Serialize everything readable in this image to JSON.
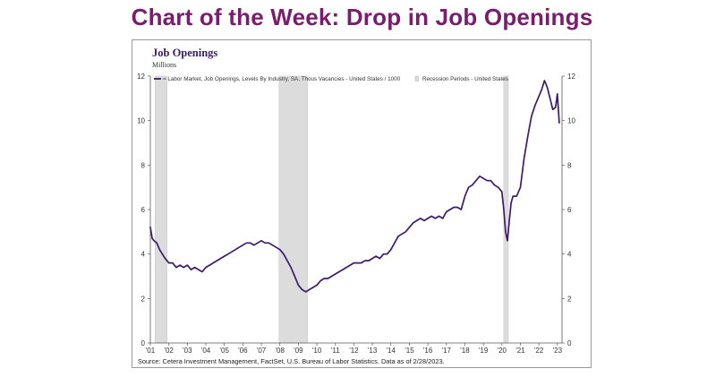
{
  "headline": "Chart of the Week: Drop in Job Openings",
  "colors": {
    "headline": "#7b1c6e",
    "series": "#3d1a6e",
    "recession": "#dcdcdc",
    "axis": "#555555"
  },
  "chart_data": {
    "type": "line",
    "title": "Job Openings",
    "unit_label": "Millions",
    "legend": [
      {
        "name": "= Labor Market, Job Openings, Levels By Industry, SA, Thous Vacancies - United States / 1000",
        "marker": "line"
      },
      {
        "name": "Recession Periods - United States",
        "marker": "box"
      }
    ],
    "x_tick_labels": [
      "'01",
      "'02",
      "'03",
      "'04",
      "'05",
      "'06",
      "'07",
      "'08",
      "'09",
      "'10",
      "'11",
      "'12",
      "'13",
      "'14",
      "'15",
      "'16",
      "'17",
      "'18",
      "'19",
      "'20",
      "'21",
      "'22",
      "'23"
    ],
    "x_range": [
      2001.0,
      2023.25
    ],
    "ylim": [
      0,
      12
    ],
    "y_ticks": [
      0,
      2,
      4,
      6,
      8,
      10,
      12
    ],
    "recessions": [
      [
        2001.25,
        2001.9
      ],
      [
        2007.95,
        2009.5
      ],
      [
        2020.1,
        2020.35
      ]
    ],
    "series": [
      {
        "name": "Job Openings (Millions)",
        "x": [
          2001.0,
          2001.1,
          2001.2,
          2001.35,
          2001.5,
          2001.65,
          2001.8,
          2002.0,
          2002.2,
          2002.4,
          2002.6,
          2002.8,
          2003.0,
          2003.2,
          2003.4,
          2003.6,
          2003.8,
          2004.0,
          2004.2,
          2004.4,
          2004.6,
          2004.8,
          2005.0,
          2005.2,
          2005.4,
          2005.6,
          2005.8,
          2006.0,
          2006.2,
          2006.4,
          2006.6,
          2006.8,
          2007.0,
          2007.2,
          2007.4,
          2007.6,
          2007.8,
          2008.0,
          2008.2,
          2008.4,
          2008.6,
          2008.8,
          2009.0,
          2009.2,
          2009.4,
          2009.6,
          2009.8,
          2010.0,
          2010.2,
          2010.4,
          2010.6,
          2010.8,
          2011.0,
          2011.2,
          2011.4,
          2011.6,
          2011.8,
          2012.0,
          2012.2,
          2012.4,
          2012.6,
          2012.8,
          2013.0,
          2013.2,
          2013.4,
          2013.6,
          2013.8,
          2014.0,
          2014.2,
          2014.4,
          2014.6,
          2014.8,
          2015.0,
          2015.2,
          2015.4,
          2015.6,
          2015.8,
          2016.0,
          2016.2,
          2016.4,
          2016.6,
          2016.8,
          2017.0,
          2017.2,
          2017.4,
          2017.6,
          2017.8,
          2018.0,
          2018.2,
          2018.4,
          2018.6,
          2018.8,
          2019.0,
          2019.2,
          2019.4,
          2019.6,
          2019.8,
          2020.0,
          2020.1,
          2020.2,
          2020.3,
          2020.4,
          2020.5,
          2020.6,
          2020.8,
          2021.0,
          2021.2,
          2021.4,
          2021.6,
          2021.8,
          2022.0,
          2022.15,
          2022.3,
          2022.45,
          2022.6,
          2022.75,
          2022.9,
          2023.0,
          2023.1
        ],
        "values": [
          5.2,
          4.7,
          4.6,
          4.5,
          4.2,
          4.0,
          3.8,
          3.6,
          3.6,
          3.4,
          3.5,
          3.4,
          3.5,
          3.3,
          3.4,
          3.3,
          3.2,
          3.4,
          3.5,
          3.6,
          3.7,
          3.8,
          3.9,
          4.0,
          4.1,
          4.2,
          4.3,
          4.4,
          4.5,
          4.5,
          4.4,
          4.5,
          4.6,
          4.5,
          4.5,
          4.4,
          4.3,
          4.2,
          4.0,
          3.7,
          3.4,
          3.0,
          2.6,
          2.4,
          2.3,
          2.4,
          2.5,
          2.6,
          2.8,
          2.9,
          2.9,
          3.0,
          3.1,
          3.2,
          3.3,
          3.4,
          3.5,
          3.6,
          3.6,
          3.6,
          3.7,
          3.7,
          3.8,
          3.9,
          3.8,
          4.0,
          4.0,
          4.2,
          4.5,
          4.8,
          4.9,
          5.0,
          5.2,
          5.4,
          5.5,
          5.6,
          5.5,
          5.6,
          5.7,
          5.6,
          5.7,
          5.6,
          5.9,
          6.0,
          6.1,
          6.1,
          6.0,
          6.6,
          7.0,
          7.1,
          7.3,
          7.5,
          7.4,
          7.3,
          7.3,
          7.1,
          7.0,
          6.8,
          6.0,
          5.0,
          4.6,
          5.5,
          6.3,
          6.6,
          6.6,
          7.0,
          8.3,
          9.3,
          10.2,
          10.7,
          11.1,
          11.4,
          11.8,
          11.5,
          11.0,
          10.5,
          10.6,
          11.2,
          9.9
        ]
      }
    ],
    "source": "Source: Cetera Investment Management, FactSet, U.S. Bureau of Labor Statistics. Data as of 2/28/2023."
  }
}
